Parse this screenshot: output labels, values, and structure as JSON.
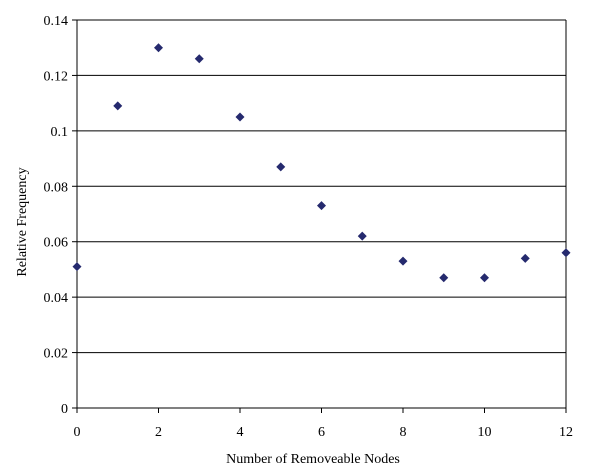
{
  "chart_data": {
    "type": "scatter",
    "title": "",
    "xlabel": "Number of Removeable Nodes",
    "ylabel": "Relative Frequency",
    "xlim": [
      0,
      12
    ],
    "ylim": [
      0,
      0.14
    ],
    "x_ticks": [
      0,
      2,
      4,
      6,
      8,
      10,
      12
    ],
    "y_ticks": [
      0,
      0.02,
      0.04,
      0.06,
      0.08,
      0.1,
      0.12,
      0.14
    ],
    "x_tick_labels": [
      "0",
      "2",
      "4",
      "6",
      "8",
      "10",
      "12"
    ],
    "y_tick_labels": [
      "0",
      "0.02",
      "0.04",
      "0.06",
      "0.08",
      "0.1",
      "0.12",
      "0.14"
    ],
    "grid": "horizontal",
    "marker": "diamond",
    "marker_color": "#252a6e",
    "series": [
      {
        "x": [
          0,
          1,
          2,
          3,
          4,
          5,
          6,
          7,
          8,
          9,
          10,
          11,
          12
        ],
        "y": [
          0.051,
          0.109,
          0.13,
          0.126,
          0.105,
          0.087,
          0.073,
          0.062,
          0.053,
          0.047,
          0.047,
          0.054,
          0.056
        ]
      }
    ]
  }
}
